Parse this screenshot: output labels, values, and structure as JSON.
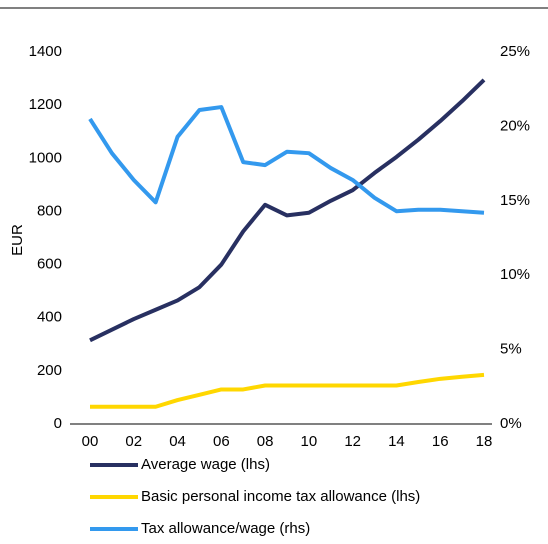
{
  "chart_data": {
    "type": "line",
    "y_label": "EUR",
    "categories": [
      "00",
      null,
      "02",
      null,
      "04",
      null,
      "06",
      null,
      "08",
      null,
      "10",
      null,
      "12",
      null,
      "14",
      null,
      "16",
      null,
      "18"
    ],
    "series": [
      {
        "name": "Average wage  (lhs)",
        "color": "#283061",
        "values": [
          315,
          355,
          395,
          430,
          465,
          515,
          600,
          725,
          825,
          785,
          795,
          840,
          880,
          945,
          1005,
          1070,
          1140,
          1215,
          1295
        ]
      },
      {
        "name": "Basic personal income tax allowance (lhs)",
        "color": "#ffd700",
        "values": [
          65,
          65,
          65,
          65,
          90,
          110,
          130,
          130,
          145,
          145,
          145,
          145,
          145,
          145,
          145,
          158,
          170,
          178,
          185
        ]
      },
      {
        "name": "Tax allowance/wage (rhs)",
        "color": "#3399ee",
        "axis": "y2",
        "values": [
          20.5,
          18.2,
          16.4,
          14.9,
          19.3,
          21.1,
          21.3,
          17.6,
          17.4,
          18.3,
          18.2,
          17.2,
          16.4,
          15.2,
          14.3,
          14.4,
          14.4,
          14.3,
          14.2
        ]
      }
    ],
    "ylim": [
      0,
      1400
    ],
    "yticks": [
      0,
      200,
      400,
      600,
      800,
      1000,
      1200,
      1400
    ],
    "y2lim": [
      0,
      25
    ],
    "y2ticks": [
      {
        "value": 0,
        "label": "0%"
      },
      {
        "value": 5,
        "label": "5%"
      },
      {
        "value": 10,
        "label": "10%"
      },
      {
        "value": 15,
        "label": "15%"
      },
      {
        "value": 20,
        "label": "20%"
      },
      {
        "value": 25,
        "label": "25%"
      }
    ]
  }
}
